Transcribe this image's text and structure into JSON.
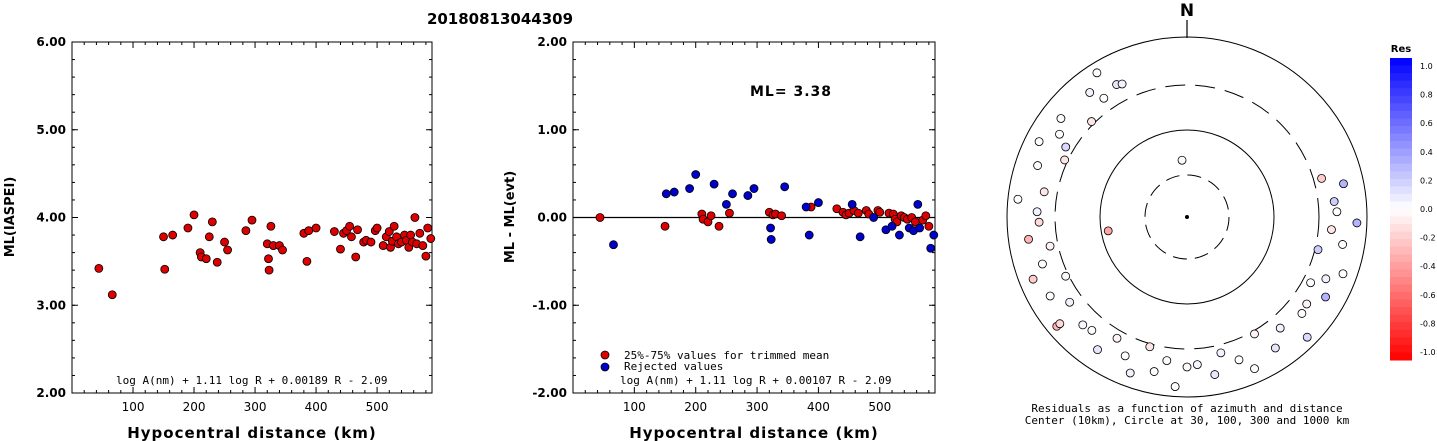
{
  "title": "20180813044309",
  "colors": {
    "red": "#dd0000",
    "blue": "#0000cc"
  },
  "chart_data": [
    {
      "type": "scatter",
      "name": "left-magnitude-plot",
      "title": "",
      "xlabel": "Hypocentral distance (km)",
      "ylabel": "ML(IASPEI)",
      "xlim": [
        0,
        590
      ],
      "ylim": [
        2.0,
        6.0
      ],
      "xticks": [
        100,
        200,
        300,
        400,
        500
      ],
      "yticks": [
        "2.00",
        "3.00",
        "4.00",
        "5.00",
        "6.00"
      ],
      "formula": "log A(nm) + 1.11 log R + 0.00189 R - 2.09",
      "points": [
        [
          44,
          3.42
        ],
        [
          66,
          3.12
        ],
        [
          150,
          3.78
        ],
        [
          152,
          3.41
        ],
        [
          165,
          3.8
        ],
        [
          190,
          3.88
        ],
        [
          200,
          4.03
        ],
        [
          210,
          3.6
        ],
        [
          212,
          3.55
        ],
        [
          220,
          3.53
        ],
        [
          225,
          3.78
        ],
        [
          230,
          3.95
        ],
        [
          238,
          3.49
        ],
        [
          250,
          3.72
        ],
        [
          255,
          3.63
        ],
        [
          285,
          3.85
        ],
        [
          295,
          3.97
        ],
        [
          320,
          3.7
        ],
        [
          322,
          3.53
        ],
        [
          323,
          3.4
        ],
        [
          326,
          3.9
        ],
        [
          330,
          3.68
        ],
        [
          340,
          3.68
        ],
        [
          345,
          3.63
        ],
        [
          380,
          3.82
        ],
        [
          385,
          3.5
        ],
        [
          388,
          3.85
        ],
        [
          400,
          3.88
        ],
        [
          430,
          3.84
        ],
        [
          440,
          3.64
        ],
        [
          445,
          3.82
        ],
        [
          450,
          3.85
        ],
        [
          455,
          3.9
        ],
        [
          458,
          3.78
        ],
        [
          465,
          3.55
        ],
        [
          468,
          3.86
        ],
        [
          478,
          3.72
        ],
        [
          482,
          3.74
        ],
        [
          490,
          3.72
        ],
        [
          497,
          3.85
        ],
        [
          500,
          3.88
        ],
        [
          510,
          3.68
        ],
        [
          515,
          3.78
        ],
        [
          520,
          3.84
        ],
        [
          522,
          3.66
        ],
        [
          525,
          3.73
        ],
        [
          528,
          3.9
        ],
        [
          532,
          3.78
        ],
        [
          535,
          3.7
        ],
        [
          540,
          3.72
        ],
        [
          545,
          3.8
        ],
        [
          548,
          3.74
        ],
        [
          552,
          3.66
        ],
        [
          555,
          3.8
        ],
        [
          558,
          3.72
        ],
        [
          562,
          4.0
        ],
        [
          565,
          3.7
        ],
        [
          570,
          3.82
        ],
        [
          575,
          3.68
        ],
        [
          580,
          3.56
        ],
        [
          583,
          3.88
        ],
        [
          588,
          3.76
        ],
        [
          592,
          3.74
        ]
      ]
    },
    {
      "type": "scatter",
      "name": "middle-residual-plot",
      "title": "",
      "xlabel": "Hypocentral distance (km)",
      "ylabel": "ML - ML(evt)",
      "xlim": [
        0,
        590
      ],
      "ylim": [
        -2.0,
        2.0
      ],
      "xticks": [
        100,
        200,
        300,
        400,
        500
      ],
      "yticks": [
        "-2.00",
        "-1.00",
        "0.00",
        "1.00",
        "2.00"
      ],
      "annotation": "ML= 3.38",
      "formula": "log A(nm) + 1.11 log R + 0.00107 R - 2.09",
      "legend": [
        {
          "label": "25%-75% values for trimmed mean",
          "color": "red"
        },
        {
          "label": "Rejected values",
          "color": "blue"
        }
      ],
      "series": [
        {
          "color": "red",
          "points": [
            [
              44,
              0.0
            ],
            [
              150,
              -0.1
            ],
            [
              210,
              0.04
            ],
            [
              212,
              -0.02
            ],
            [
              220,
              -0.05
            ],
            [
              225,
              0.02
            ],
            [
              238,
              -0.1
            ],
            [
              255,
              0.05
            ],
            [
              320,
              0.06
            ],
            [
              326,
              0.03
            ],
            [
              330,
              0.04
            ],
            [
              340,
              0.02
            ],
            [
              388,
              0.12
            ],
            [
              430,
              0.1
            ],
            [
              440,
              0.06
            ],
            [
              445,
              0.03
            ],
            [
              450,
              0.05
            ],
            [
              458,
              0.08
            ],
            [
              465,
              0.05
            ],
            [
              478,
              0.08
            ],
            [
              482,
              0.04
            ],
            [
              497,
              0.08
            ],
            [
              500,
              0.06
            ],
            [
              515,
              0.05
            ],
            [
              522,
              0.04
            ],
            [
              525,
              -0.02
            ],
            [
              528,
              -0.05
            ],
            [
              535,
              0.02
            ],
            [
              540,
              0.0
            ],
            [
              545,
              -0.02
            ],
            [
              552,
              0.0
            ],
            [
              558,
              -0.05
            ],
            [
              570,
              -0.03
            ],
            [
              575,
              0.02
            ],
            [
              580,
              -0.1
            ]
          ]
        },
        {
          "color": "blue",
          "points": [
            [
              66,
              -0.31
            ],
            [
              152,
              0.27
            ],
            [
              165,
              0.29
            ],
            [
              190,
              0.33
            ],
            [
              200,
              0.49
            ],
            [
              230,
              0.38
            ],
            [
              250,
              0.15
            ],
            [
              260,
              0.27
            ],
            [
              285,
              0.25
            ],
            [
              295,
              0.33
            ],
            [
              322,
              -0.12
            ],
            [
              323,
              -0.25
            ],
            [
              345,
              0.35
            ],
            [
              380,
              0.12
            ],
            [
              385,
              -0.2
            ],
            [
              400,
              0.17
            ],
            [
              455,
              0.15
            ],
            [
              468,
              -0.22
            ],
            [
              490,
              0.0
            ],
            [
              510,
              -0.14
            ],
            [
              520,
              -0.1
            ],
            [
              532,
              -0.2
            ],
            [
              548,
              -0.12
            ],
            [
              555,
              -0.15
            ],
            [
              562,
              0.15
            ],
            [
              565,
              -0.12
            ],
            [
              583,
              -0.35
            ],
            [
              588,
              -0.2
            ]
          ]
        }
      ]
    },
    {
      "type": "polar-scatter",
      "name": "azimuth-residual-plot",
      "north_label": "N",
      "caption_line1": "Residuals as a function of azimuth and distance",
      "caption_line2": "Center (10km), Circle at 30, 100, 300 and 1000 km",
      "colorbar": {
        "title": "Res",
        "labels": [
          "1.0",
          "0.8",
          "0.6",
          "0.4",
          "0.2",
          "0.0",
          "-0.2",
          "-0.4",
          "-0.6",
          "-0.8",
          "-1.0"
        ]
      },
      "points": [
        [
          -5,
          0.02
        ],
        [
          -52,
          0.01
        ],
        [
          -60,
          0.15
        ],
        [
          -57,
          0.0
        ],
        [
          -63,
          0.0
        ],
        [
          -65,
          -0.1
        ],
        [
          -71,
          0.02
        ],
        [
          -80,
          -0.1
        ],
        [
          -84,
          0.0
        ],
        [
          -88,
          0.05
        ],
        [
          -92,
          -0.15
        ],
        [
          -98,
          -0.3
        ],
        [
          -102,
          -0.05
        ],
        [
          -108,
          0.0
        ],
        [
          -112,
          -0.2
        ],
        [
          -116,
          0.02
        ],
        [
          -120,
          0.0
        ],
        [
          -126,
          0.05
        ],
        [
          -130,
          -0.3
        ],
        [
          -136,
          0.03
        ],
        [
          -140,
          0.0
        ],
        [
          -146,
          0.1
        ],
        [
          -150,
          -0.05
        ],
        [
          -156,
          0.0
        ],
        [
          -160,
          0.05
        ],
        [
          -164,
          -0.1
        ],
        [
          -168,
          0.0
        ],
        [
          -172,
          0.02
        ],
        [
          -176,
          0.0
        ],
        [
          -180,
          -0.02
        ],
        [
          176,
          0.03
        ],
        [
          170,
          0.1
        ],
        [
          166,
          0.05
        ],
        [
          160,
          0.0
        ],
        [
          156,
          0.02
        ],
        [
          150,
          -0.05
        ],
        [
          146,
          0.1
        ],
        [
          140,
          0.05
        ],
        [
          135,
          0.15
        ],
        [
          130,
          0.0
        ],
        [
          126,
          -0.05
        ],
        [
          120,
          0.3
        ],
        [
          118,
          0.02
        ],
        [
          114,
          0.05
        ],
        [
          110,
          0.0
        ],
        [
          104,
          0.2
        ],
        [
          100,
          0.0
        ],
        [
          95,
          -0.1
        ],
        [
          92,
          0.3
        ],
        [
          88,
          0.0
        ],
        [
          84,
          0.2
        ],
        [
          78,
          0.3
        ],
        [
          74,
          -0.2
        ],
        [
          -100,
          -0.35
        ],
        [
          -130,
          -0.15
        ],
        [
          -45,
          -0.1
        ],
        [
          -38,
          0.05
        ],
        [
          -35,
          0.0
        ],
        [
          -32,
          0.02
        ],
        [
          -28,
          0.1
        ],
        [
          -26,
          0.05
        ]
      ]
    }
  ]
}
